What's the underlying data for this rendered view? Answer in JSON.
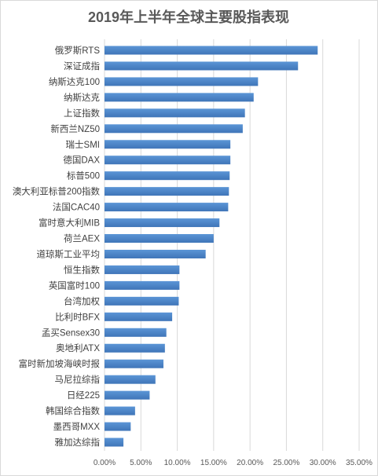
{
  "chart_data": {
    "type": "bar",
    "orientation": "horizontal",
    "title": "2019年上半年全球主要股指表现",
    "categories": [
      "俄罗斯RTS",
      "深证成指",
      "纳斯达克100",
      "纳斯达克",
      "上证指数",
      "新西兰NZ50",
      "瑞士SMI",
      "德国DAX",
      "标普500",
      "澳大利亚标普200指数",
      "法国CAC40",
      "富时意大利MIB",
      "荷兰AEX",
      "道琼斯工业平均",
      "恒生指数",
      "英国富时100",
      "台湾加权",
      "比利时BFX",
      "孟买Sensex30",
      "奥地利ATX",
      "富时新加坡海峡时报",
      "马尼拉综指",
      "日经225",
      "韩国综合指数",
      "墨西哥MXX",
      "雅加达综指"
    ],
    "values": [
      29.3,
      26.6,
      21.1,
      20.5,
      19.3,
      19.0,
      17.3,
      17.3,
      17.2,
      17.1,
      17.0,
      15.8,
      15.0,
      13.9,
      10.3,
      10.3,
      10.2,
      9.3,
      8.5,
      8.3,
      8.1,
      7.0,
      6.2,
      4.2,
      3.6,
      2.6
    ],
    "value_unit": "%",
    "xlim": [
      0,
      35
    ],
    "xtick_values": [
      0,
      5,
      10,
      15,
      20,
      25,
      30,
      35
    ],
    "xtick_labels": [
      "0.00%",
      "5.00%",
      "10.00%",
      "15.00%",
      "20.00%",
      "25.00%",
      "30.00%",
      "35.00%"
    ],
    "grid": true,
    "legend": "none",
    "colors": {
      "bar_top": "#5B95D6",
      "bar_bottom": "#3F75B8",
      "grid": "#D9D9D9",
      "border": "#D9D9D9"
    }
  }
}
